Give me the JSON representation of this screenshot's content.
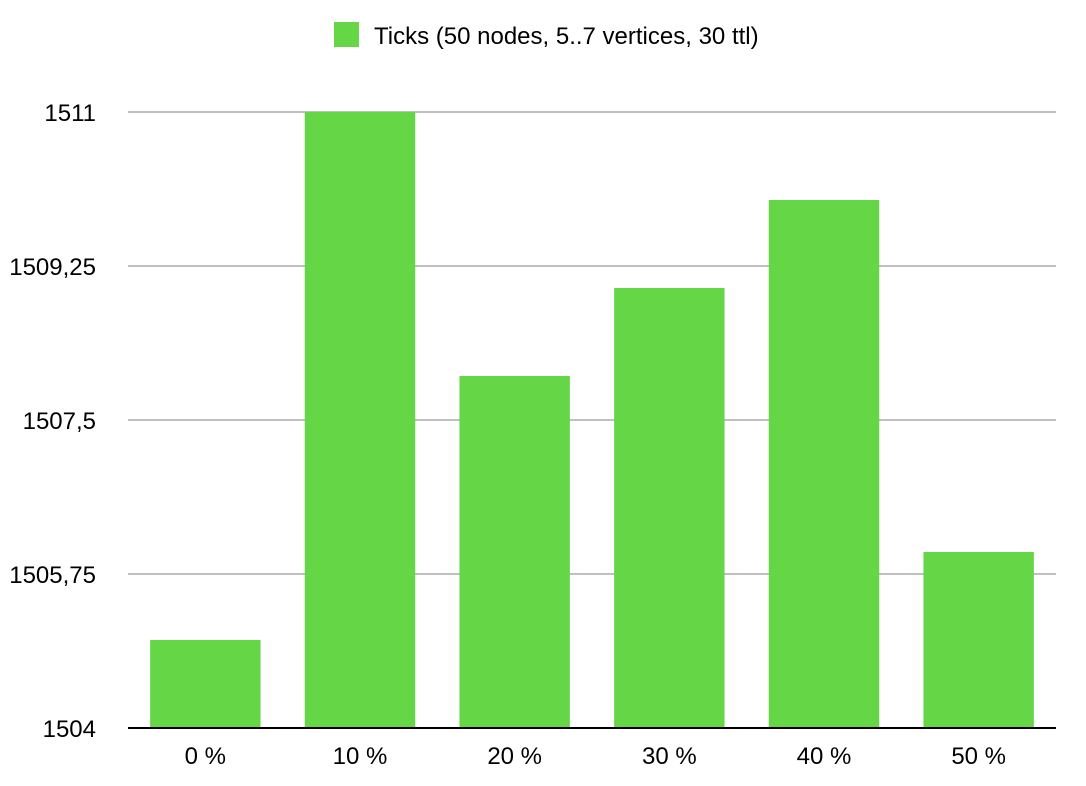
{
  "chart_data": {
    "type": "bar",
    "title": "",
    "xlabel": "",
    "ylabel": "",
    "categories": [
      "0 %",
      "10 %",
      "20 %",
      "30 %",
      "40 %",
      "50 %"
    ],
    "series": [
      {
        "name": "Ticks (50 nodes, 5..7 vertices, 30 ttl)",
        "color": "#65d646",
        "values": [
          1505,
          1511,
          1508,
          1509,
          1510,
          1506
        ]
      }
    ],
    "ylim": [
      1504,
      1511
    ],
    "yticks": [
      1504,
      1505.75,
      1507.5,
      1509.25,
      1511
    ],
    "ytick_labels": [
      "1504",
      "1505,75",
      "1507,5",
      "1509,25",
      "1511"
    ],
    "grid": true,
    "legend_position": "top-center"
  }
}
